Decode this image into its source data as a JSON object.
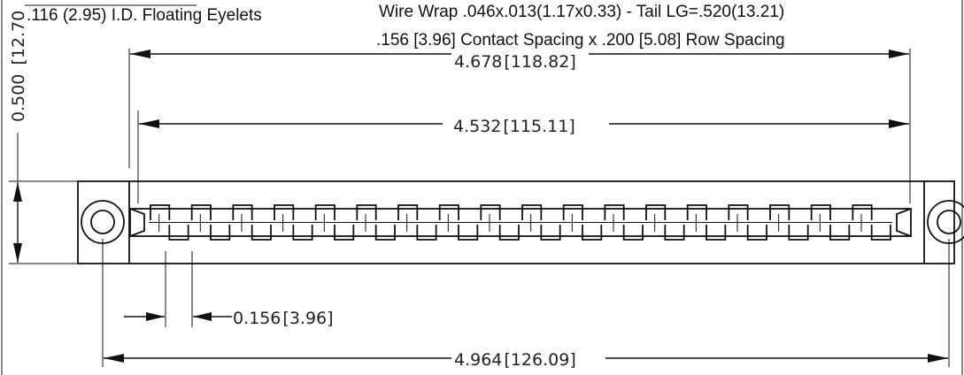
{
  "notes": {
    "eyelets": ".116 (2.95) I.D. Floating Eyelets",
    "wire_wrap": "Wire Wrap .046x.013(1.17x0.33) - Tail LG=.520(13.21)",
    "spacing": ".156 [3.96] Contact Spacing x .200 [5.08] Row Spacing"
  },
  "dimensions": {
    "height": {
      "inch": "0.500",
      "mm": "12.70"
    },
    "contact_span": {
      "inch": "4.678",
      "mm": "118.82"
    },
    "inner_span": {
      "inch": "4.532",
      "mm": "115.11"
    },
    "pitch": {
      "inch": "0.156",
      "mm": "3.96"
    },
    "overall": {
      "inch": "4.964",
      "mm": "126.09"
    }
  },
  "connector": {
    "contact_pairs": 18,
    "mounting_holes": 2
  }
}
